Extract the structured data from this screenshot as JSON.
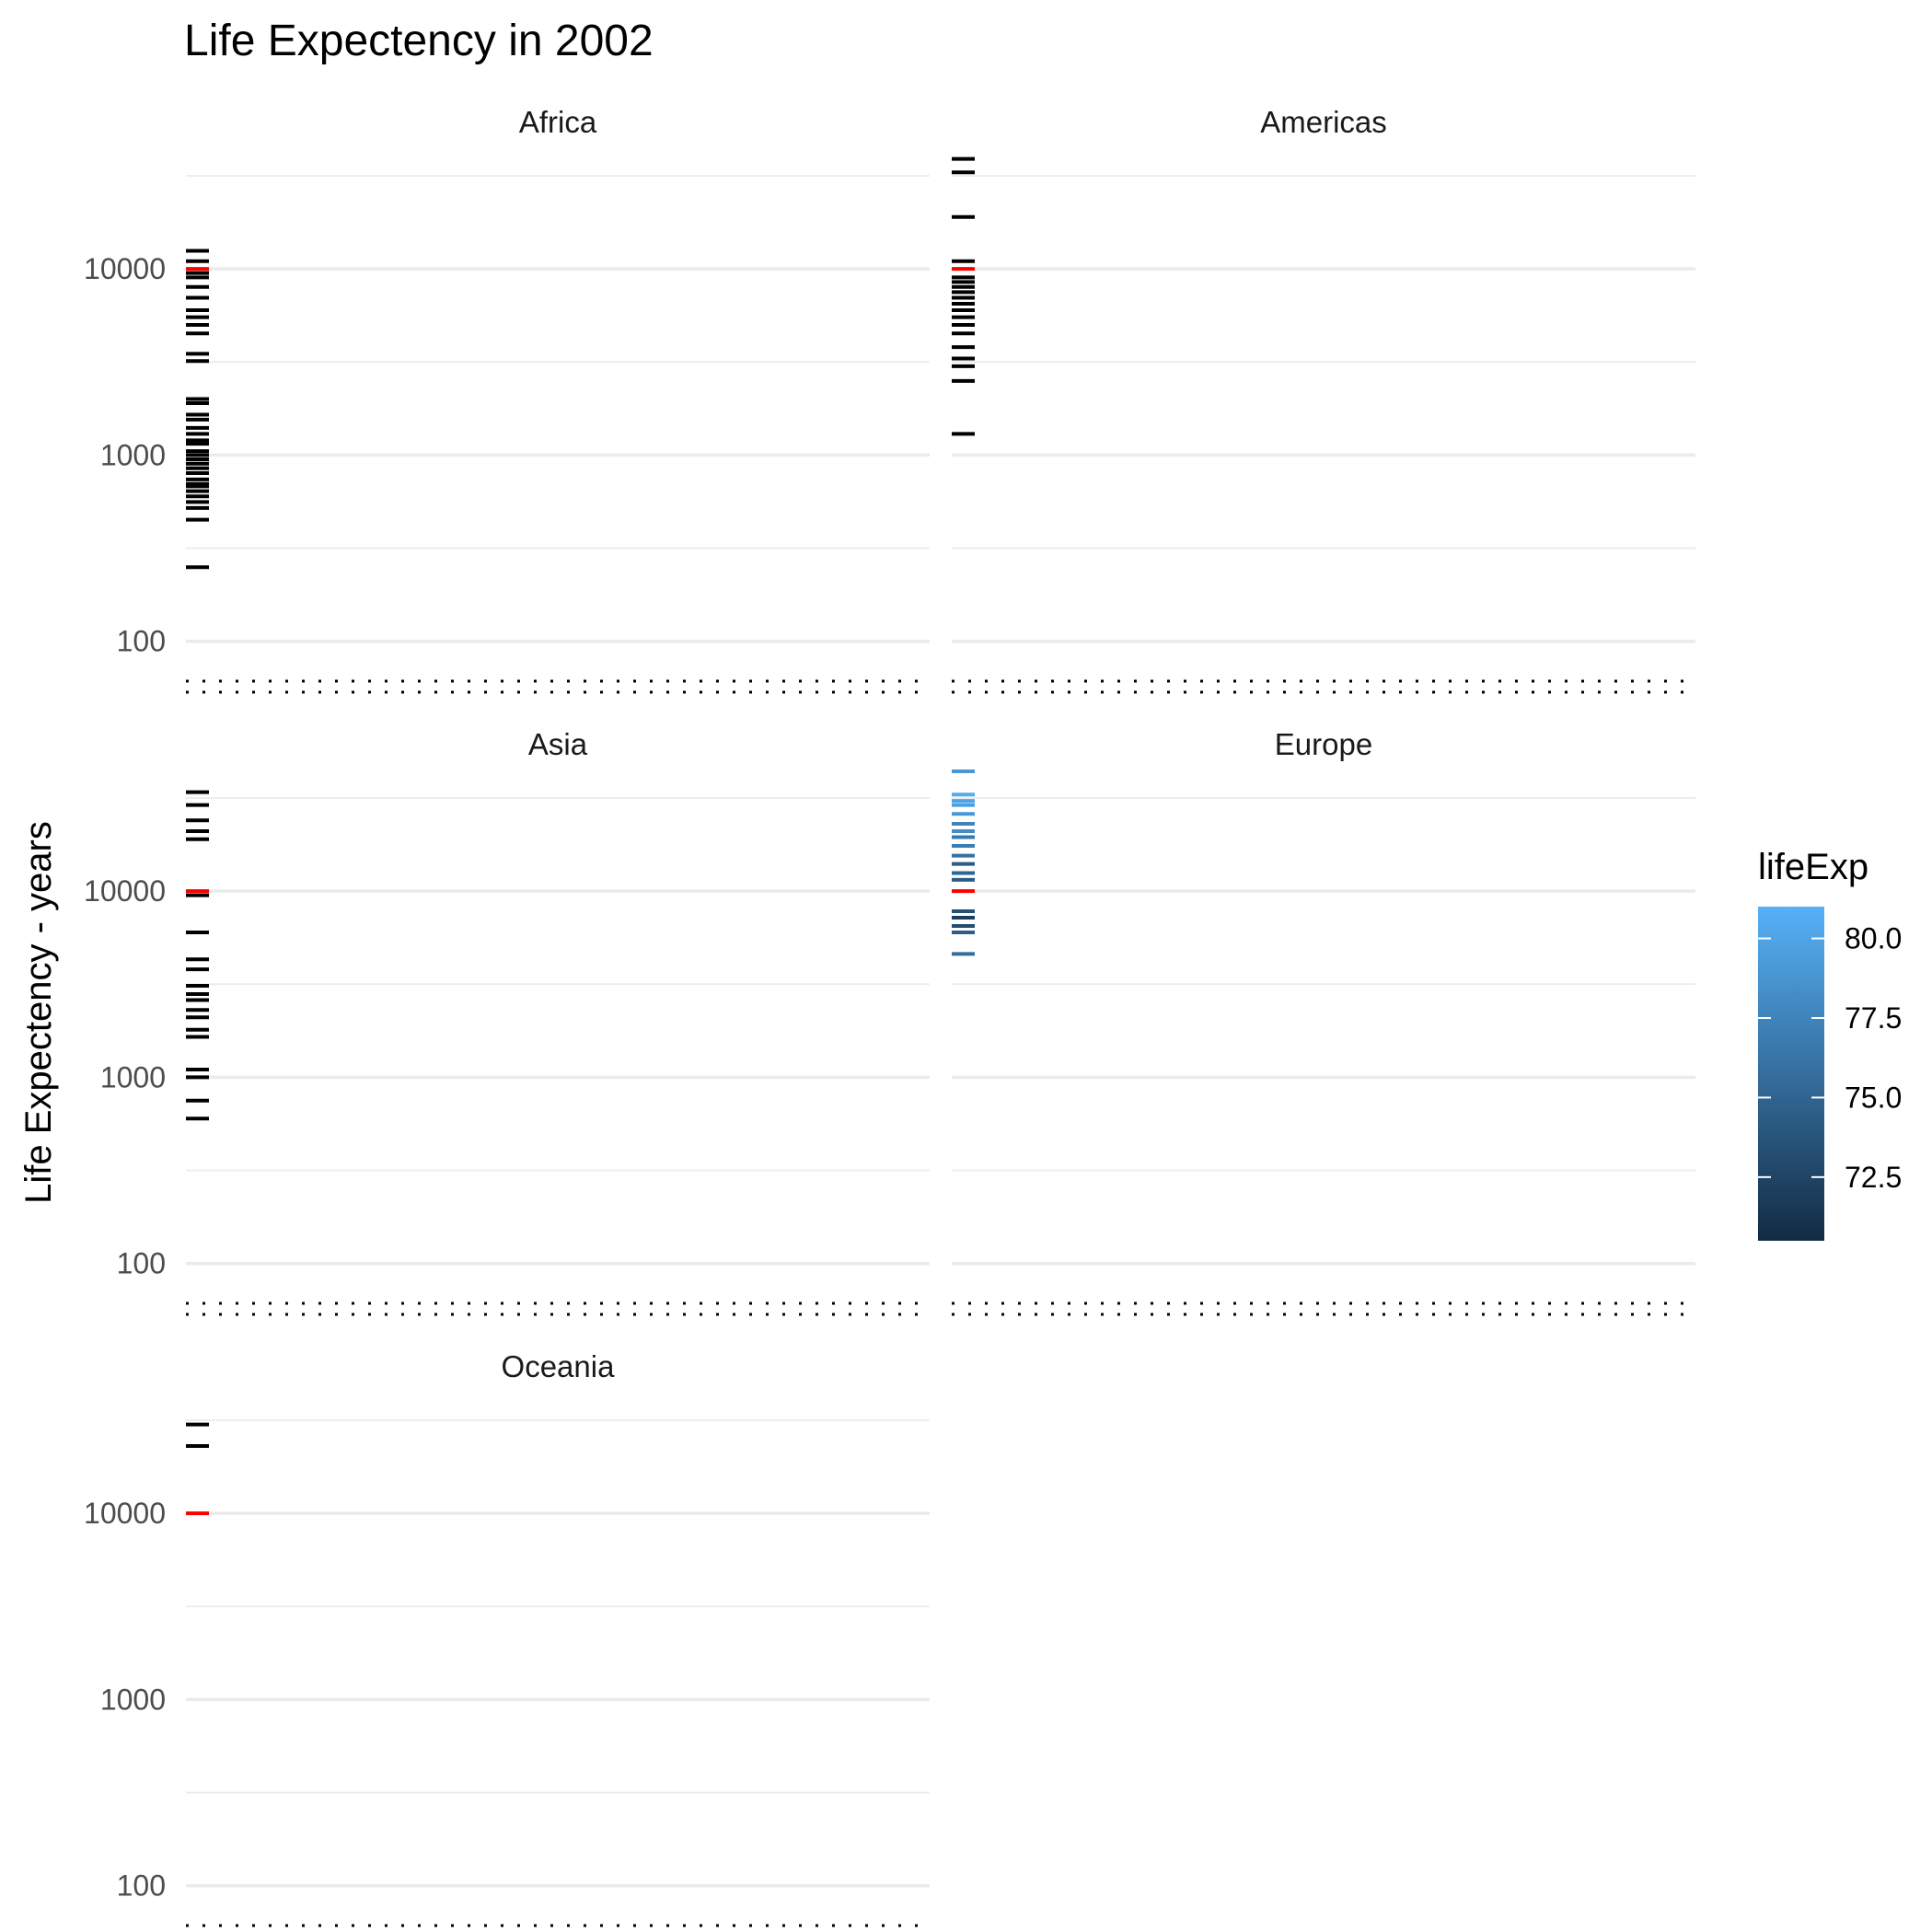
{
  "chart_data": {
    "type": "scatter",
    "title": "Life Expectency in 2002",
    "ylabel": "Life Expectency - years",
    "xlabel": "",
    "y_scale": "log10",
    "ylim": [
      75,
      45000
    ],
    "y_ticks": [
      100,
      1000,
      10000
    ],
    "y_tick_labels": [
      "100",
      "1000",
      "10000"
    ],
    "grid": true,
    "legend": {
      "title": "lifeExp",
      "placement": "right",
      "range": [
        70.5,
        81.0
      ],
      "ticks": [
        72.5,
        75.0,
        77.5,
        80.0
      ],
      "tick_labels": [
        "72.5",
        "75.0",
        "77.5",
        "80.0"
      ],
      "color_low": "#132B43",
      "color_high": "#56B1F7"
    },
    "reference_line": {
      "value": 10000,
      "color": "#ff0000"
    },
    "default_color": "#000000",
    "panels": [
      {
        "name": "Africa",
        "colored": false,
        "values": [
          250,
          450,
          520,
          560,
          600,
          640,
          680,
          700,
          740,
          800,
          850,
          900,
          950,
          1000,
          1050,
          1150,
          1200,
          1300,
          1400,
          1550,
          1650,
          1900,
          2000,
          3200,
          3500,
          4500,
          5000,
          5500,
          6000,
          7000,
          8000,
          9000,
          9500,
          11000,
          12500
        ]
      },
      {
        "name": "Americas",
        "colored": false,
        "values": [
          1300,
          2500,
          3000,
          3300,
          3800,
          4500,
          5000,
          5500,
          6000,
          6500,
          7000,
          7500,
          8000,
          8500,
          9000,
          11000,
          19000,
          33000,
          39000
        ]
      },
      {
        "name": "Asia",
        "colored": false,
        "values": [
          600,
          750,
          1000,
          1100,
          1650,
          1800,
          2100,
          2300,
          2600,
          2800,
          3100,
          3800,
          4300,
          6000,
          9500,
          19000,
          21000,
          24000,
          29000,
          34000
        ]
      },
      {
        "name": "Europe",
        "colored": true,
        "points": [
          {
            "y": 4600,
            "lifeExp": 75.6
          },
          {
            "y": 6000,
            "lifeExp": 74.5
          },
          {
            "y": 6500,
            "lifeExp": 73.2
          },
          {
            "y": 7200,
            "lifeExp": 72.0
          },
          {
            "y": 7800,
            "lifeExp": 73.5
          },
          {
            "y": 11500,
            "lifeExp": 74.3
          },
          {
            "y": 12500,
            "lifeExp": 75.0
          },
          {
            "y": 14000,
            "lifeExp": 74.2
          },
          {
            "y": 15500,
            "lifeExp": 76.0
          },
          {
            "y": 17500,
            "lifeExp": 77.0
          },
          {
            "y": 19500,
            "lifeExp": 76.5
          },
          {
            "y": 21000,
            "lifeExp": 78.0
          },
          {
            "y": 23000,
            "lifeExp": 77.5
          },
          {
            "y": 26000,
            "lifeExp": 79.0
          },
          {
            "y": 29000,
            "lifeExp": 79.5
          },
          {
            "y": 30500,
            "lifeExp": 80.0
          },
          {
            "y": 33000,
            "lifeExp": 80.5
          },
          {
            "y": 44000,
            "lifeExp": 79.0
          }
        ]
      },
      {
        "name": "Oceania",
        "colored": false,
        "values": [
          23000,
          30000
        ]
      }
    ]
  }
}
